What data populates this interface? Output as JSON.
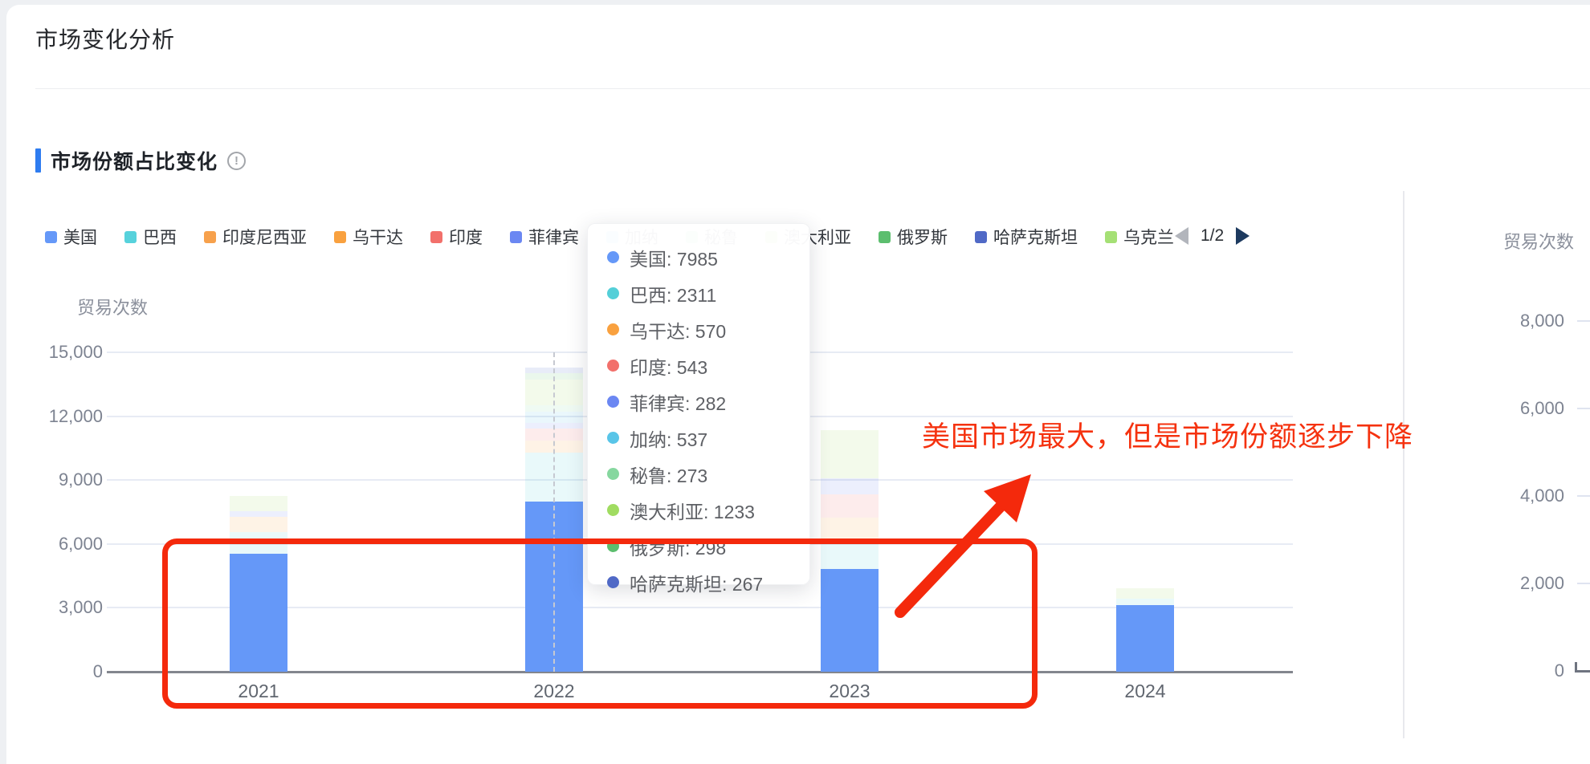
{
  "page": {
    "title": "市场变化分析"
  },
  "section": {
    "title": "市场份额占比变化",
    "info_icon": "exclamation-circle"
  },
  "legend": {
    "items": [
      {
        "label": "美国",
        "color": "#6598F8"
      },
      {
        "label": "巴西",
        "color": "#57D2DC"
      },
      {
        "label": "印度尼西亚",
        "color": "#F7A14C"
      },
      {
        "label": "乌干达",
        "color": "#F9A13F"
      },
      {
        "label": "印度",
        "color": "#F2706B"
      },
      {
        "label": "菲律宾",
        "color": "#6B87F2"
      },
      {
        "label": "加纳",
        "color": "#59C5E8"
      },
      {
        "label": "秘鲁",
        "color": "#86D79F"
      },
      {
        "label": "澳大利亚",
        "color": "#A0DC61"
      },
      {
        "label": "俄罗斯",
        "color": "#5CBE6E"
      },
      {
        "label": "哈萨克斯坦",
        "color": "#5069C6"
      },
      {
        "label": "乌克兰",
        "color": "#A5E075"
      }
    ],
    "pagination": {
      "current": "1/2",
      "prev_enabled": false,
      "next_enabled": true
    }
  },
  "axes": {
    "left": {
      "name": "贸易次数",
      "ticks": [
        {
          "value": 15000,
          "label": "15,000"
        },
        {
          "value": 12000,
          "label": "12,000"
        },
        {
          "value": 9000,
          "label": "9,000"
        },
        {
          "value": 6000,
          "label": "6,000"
        },
        {
          "value": 3000,
          "label": "3,000"
        },
        {
          "value": 0,
          "label": "0"
        }
      ]
    },
    "right": {
      "name": "贸易次数",
      "ticks": [
        {
          "value": 8000,
          "label": "8,000"
        },
        {
          "value": 6000,
          "label": "6,000"
        },
        {
          "value": 4000,
          "label": "4,000"
        },
        {
          "value": 2000,
          "label": "2,000"
        },
        {
          "value": 0,
          "label": "0"
        }
      ]
    },
    "x": {
      "labels": [
        "2021",
        "2022",
        "2023",
        "2024"
      ]
    }
  },
  "chart_data": {
    "type": "bar",
    "stacked": true,
    "title": "市场份额占比变化",
    "ylabel_left": "贸易次数",
    "ylabel_right": "贸易次数",
    "ylim_left": [
      0,
      15000
    ],
    "ylim_right": [
      0,
      8000
    ],
    "grid": true,
    "legend_position": "top",
    "categories": [
      "2021",
      "2022",
      "2023",
      "2024"
    ],
    "note": "美国 series rendered solid; all other series rendered faded (unhighlighted). Values for 2021/2023/2024 estimated from bar pixel heights; 2022 values exact from tooltip.",
    "series": [
      {
        "name": "美国",
        "color": "#6598F8",
        "solid": true,
        "values": [
          5550,
          7985,
          4830,
          3130
        ]
      },
      {
        "name": "巴西",
        "color": "#57D2DC",
        "solid": false,
        "values": [
          1020,
          2311,
          1320,
          300
        ]
      },
      {
        "name": "印度尼西亚",
        "color": "#F7A14C",
        "solid": false,
        "values": [
          0,
          0,
          0,
          0
        ]
      },
      {
        "name": "乌干达",
        "color": "#F9A13F",
        "solid": false,
        "values": [
          720,
          570,
          1100,
          0
        ]
      },
      {
        "name": "印度",
        "color": "#F2706B",
        "solid": false,
        "values": [
          0,
          543,
          1090,
          0
        ]
      },
      {
        "name": "菲律宾",
        "color": "#6B87F2",
        "solid": false,
        "values": [
          260,
          282,
          755,
          0
        ]
      },
      {
        "name": "加纳",
        "color": "#59C5E8",
        "solid": false,
        "values": [
          0,
          537,
          0,
          0
        ]
      },
      {
        "name": "秘鲁",
        "color": "#86D79F",
        "solid": false,
        "values": [
          0,
          273,
          0,
          0
        ]
      },
      {
        "name": "澳大利亚",
        "color": "#A0DC61",
        "solid": false,
        "values": [
          720,
          1233,
          2265,
          490
        ]
      },
      {
        "name": "俄罗斯",
        "color": "#5CBE6E",
        "solid": false,
        "values": [
          0,
          298,
          0,
          0
        ]
      },
      {
        "name": "哈萨克斯坦",
        "color": "#5069C6",
        "solid": false,
        "values": [
          0,
          267,
          0,
          0
        ]
      },
      {
        "name": "乌克兰",
        "color": "#A5E075",
        "solid": false,
        "values": [
          0,
          0,
          0,
          0
        ]
      }
    ]
  },
  "tooltip": {
    "hovered_category": "2022",
    "items": [
      {
        "label": "美国",
        "value": "7985",
        "color": "#6598F8"
      },
      {
        "label": "巴西",
        "value": "2311",
        "color": "#54CFD8"
      },
      {
        "label": "乌干达",
        "value": "570",
        "color": "#F9A13F"
      },
      {
        "label": "印度",
        "value": "543",
        "color": "#F2706B"
      },
      {
        "label": "菲律宾",
        "value": "282",
        "color": "#6B87F2"
      },
      {
        "label": "加纳",
        "value": "537",
        "color": "#59C5E8"
      },
      {
        "label": "秘鲁",
        "value": "273",
        "color": "#86D79F"
      },
      {
        "label": "澳大利亚",
        "value": "1233",
        "color": "#A0DC61"
      },
      {
        "label": "俄罗斯",
        "value": "298",
        "color": "#5CBE6E"
      },
      {
        "label": "哈萨克斯坦",
        "value": "267",
        "color": "#5069C6"
      }
    ]
  },
  "annotation": {
    "text": "美国市场最大，但是市场份额逐步下降",
    "color": "#f4290c"
  }
}
